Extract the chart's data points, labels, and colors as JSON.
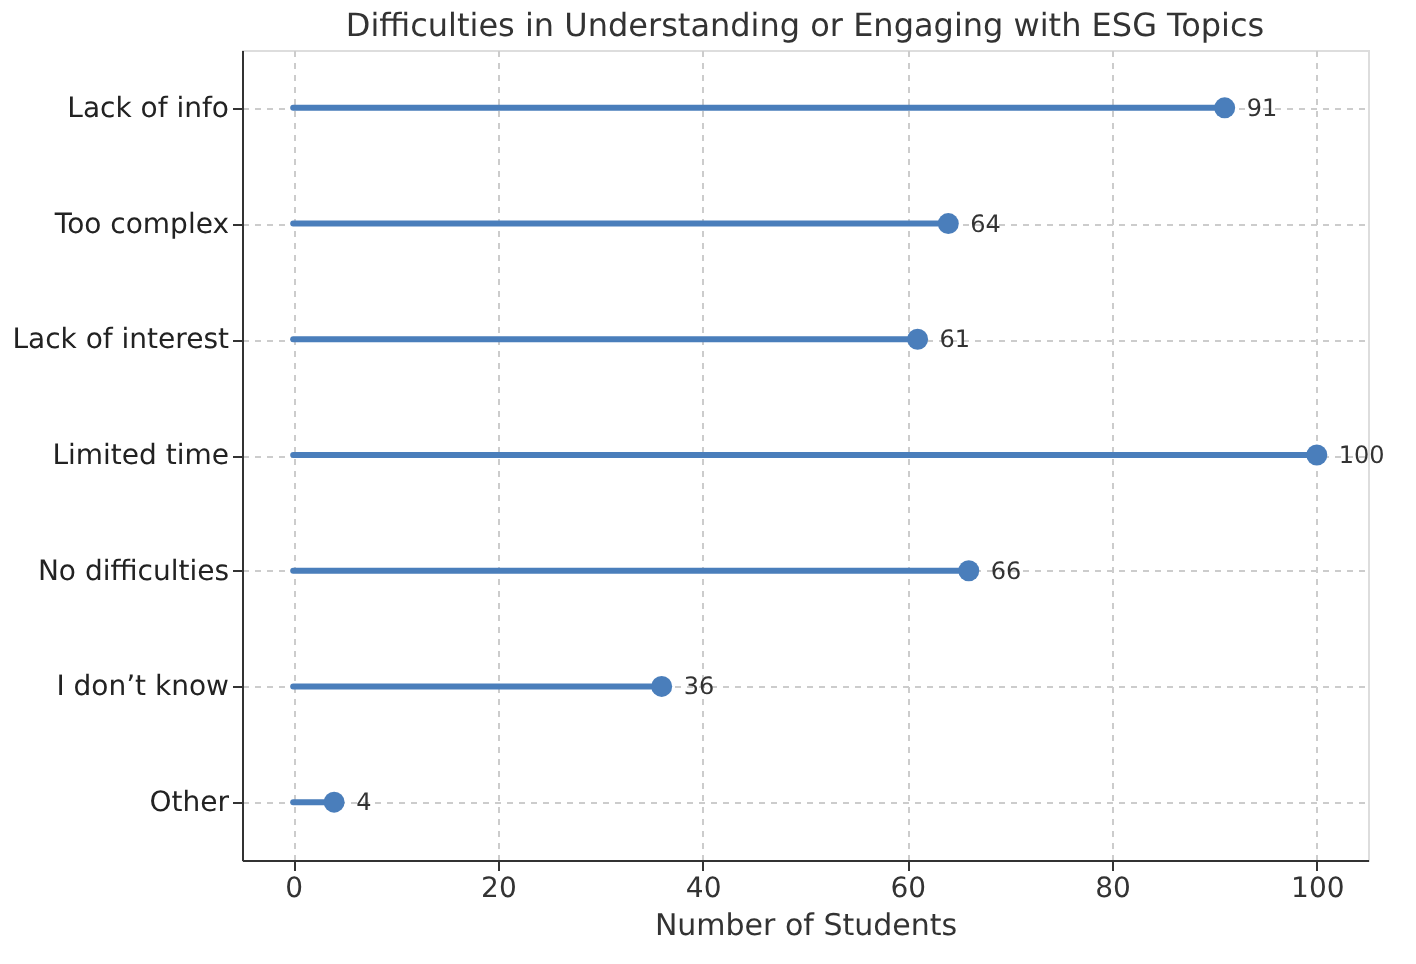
{
  "chart_data": {
    "type": "lollipop",
    "orientation": "horizontal",
    "title": "Difficulties in Understanding or Engaging with ESG Topics",
    "xlabel": "Number of Students",
    "categories": [
      "Lack of info",
      "Too complex",
      "Lack of interest",
      "Limited time",
      "No difficulties",
      "I don’t know",
      "Other"
    ],
    "values": [
      91,
      64,
      61,
      100,
      66,
      36,
      4
    ],
    "color": "#4a7ebb",
    "xlim": [
      -5,
      105
    ],
    "xticks": [
      0,
      20,
      40,
      60,
      80,
      100
    ],
    "grid": true,
    "data_labels": true,
    "marker": "circle"
  }
}
